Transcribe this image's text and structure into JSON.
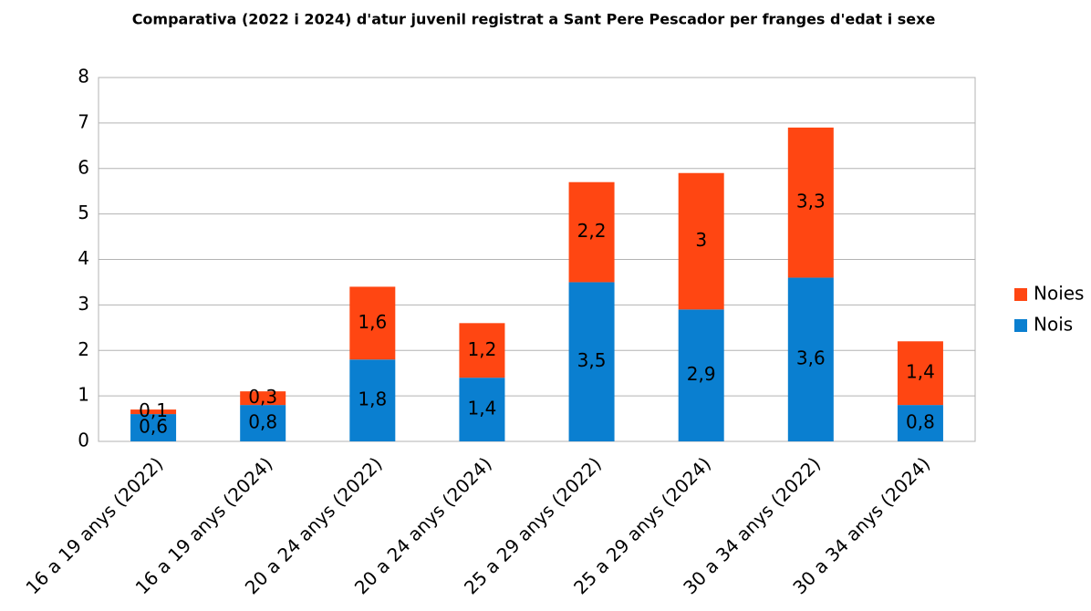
{
  "chart_data": {
    "type": "stacked_bar",
    "title": "Comparativa (2022 i 2024) d'atur juvenil registrat a Sant Pere Pescador per franges d'edat i sexe",
    "categories": [
      "16 a 19 anys (2022)",
      "16 a 19 anys (2024)",
      "20 a 24 anys (2022)",
      "20 a 24 anys (2024)",
      "25 a 29 anys (2022)",
      "25 a 29 anys (2024)",
      "30 a 34 anys (2022)",
      "30 a 34 anys (2024)"
    ],
    "series": [
      {
        "name": "Nois",
        "color": "#0a7fd0",
        "values": [
          0.6,
          0.8,
          1.8,
          1.4,
          3.5,
          2.9,
          3.6,
          0.8
        ],
        "value_labels": [
          "0,6",
          "0,8",
          "1,8",
          "1,4",
          "3,5",
          "2,9",
          "3,6",
          "0,8"
        ]
      },
      {
        "name": "Noies",
        "color": "#ff4612",
        "values": [
          0.1,
          0.3,
          1.6,
          1.2,
          2.2,
          3,
          3.3,
          1.4
        ],
        "value_labels": [
          "0,1",
          "0,3",
          "1,6",
          "1,2",
          "2,2",
          "3",
          "3,3",
          "1,4"
        ]
      }
    ],
    "ylim": [
      0,
      8
    ],
    "yticks": [
      0,
      1,
      2,
      3,
      4,
      5,
      6,
      7,
      8
    ],
    "grid": true,
    "legend": "right"
  }
}
